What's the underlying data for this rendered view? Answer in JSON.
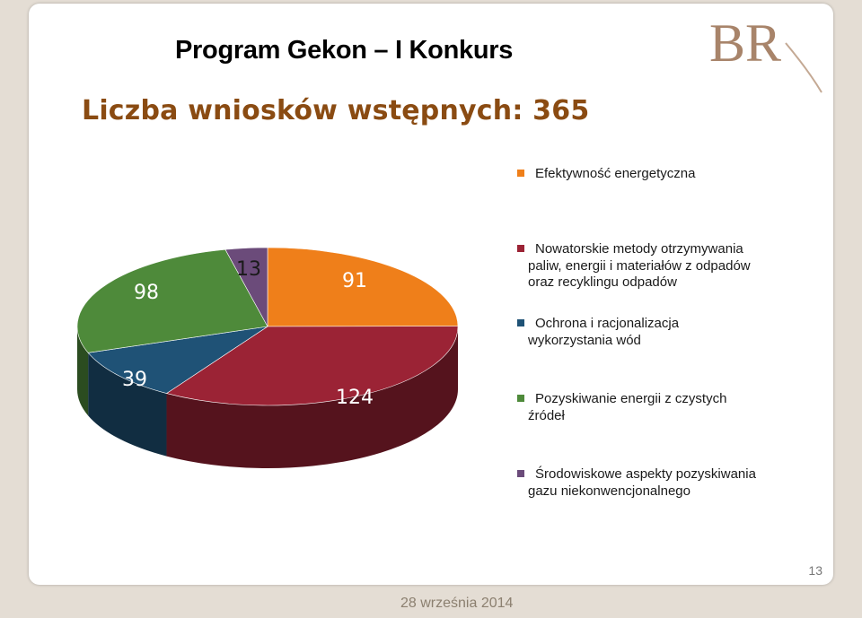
{
  "slide": {
    "title": "Program Gekon – I Konkurs",
    "subtitle": "Liczba wniosków wstępnych: 365",
    "page_number": "13",
    "date": "28 września 2014",
    "logo": "BR"
  },
  "chart_data": {
    "type": "pie",
    "three_d": true,
    "total": 365,
    "categories": [
      "Efektywność energetyczna",
      "Nowatorskie metody otrzymywania paliw, energii i materiałów z odpadów oraz recyklingu odpadów",
      "Ochrona i racjonalizacja wykorzystania wód",
      "Pozyskiwanie energii z czystych źródeł",
      "Środowiskowe aspekty pozyskiwania gazu niekonwencjonalnego"
    ],
    "values": [
      91,
      124,
      39,
      98,
      13
    ],
    "data_labels": [
      "91",
      "124",
      "39",
      "98",
      "13"
    ],
    "colors": [
      "#ef7f1a",
      "#9b2335",
      "#1f5276",
      "#4e8a3a",
      "#6b4b7a"
    ],
    "legend_position": "right"
  },
  "legend": {
    "items": [
      {
        "line1": "Efektywność energetyczna",
        "line2": "",
        "color": "#ef7f1a"
      },
      {
        "line1": "Nowatorskie metody otrzymywania",
        "line2": "paliw, energii i materiałów z odpadów",
        "line3": "oraz recyklingu odpadów",
        "color": "#9b2335"
      },
      {
        "line1": "Ochrona i racjonalizacja",
        "line2": "wykorzystania wód",
        "color": "#1f5276"
      },
      {
        "line1": "Pozyskiwanie energii z czystych",
        "line2": "źródeł",
        "color": "#4e8a3a"
      },
      {
        "line1": "Środowiskowe aspekty pozyskiwania",
        "line2": "gazu niekonwencjonalnego",
        "color": "#6b4b7a"
      }
    ]
  }
}
